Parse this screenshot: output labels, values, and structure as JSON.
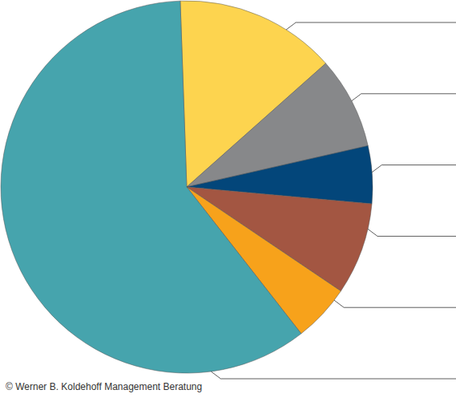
{
  "chart_data": {
    "type": "pie",
    "values": [
      14,
      8,
      5,
      8,
      5,
      60
    ],
    "colors": [
      "#fdd44f",
      "#87888a",
      "#03467a",
      "#a35642",
      "#f7a21b",
      "#46a4ad"
    ],
    "annotations": [
      "© Werner B. Koldehoff Management Beratung"
    ]
  }
}
